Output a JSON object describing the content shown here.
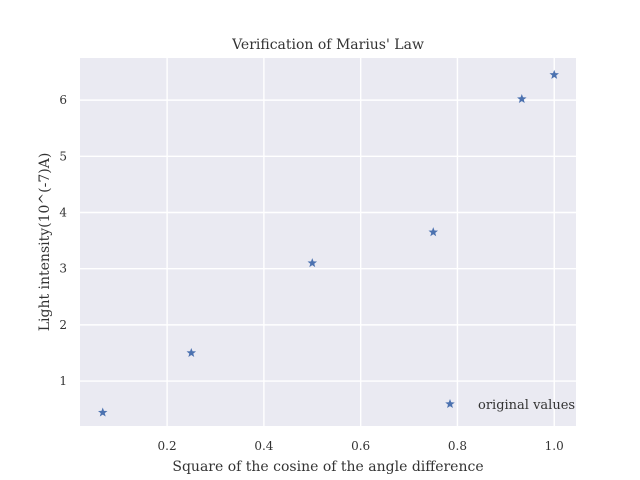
{
  "chart_data": {
    "type": "scatter",
    "title": "Verification of Marius' Law",
    "xlabel": "Square of the cosine of the angle difference",
    "ylabel": "Light intensity(10^(-7)A)",
    "xlim": [
      0.02,
      1.045
    ],
    "ylim": [
      0.2,
      6.75
    ],
    "xticks": [
      0.2,
      0.4,
      0.6,
      0.8,
      1.0
    ],
    "xtick_labels": [
      "0.2",
      "0.4",
      "0.6",
      "0.8",
      "1.0"
    ],
    "yticks": [
      1,
      2,
      3,
      4,
      5,
      6
    ],
    "ytick_labels": [
      "1",
      "2",
      "3",
      "4",
      "5",
      "6"
    ],
    "grid": true,
    "legend": "lower-right",
    "marker": "star",
    "series": [
      {
        "name": "original values",
        "color": "#4c72b0",
        "x": [
          0.067,
          0.25,
          0.5,
          0.75,
          0.933,
          1.0
        ],
        "y": [
          0.44,
          1.5,
          3.1,
          3.65,
          6.02,
          6.45
        ]
      }
    ]
  }
}
